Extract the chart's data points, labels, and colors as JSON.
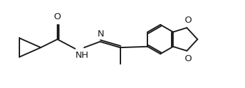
{
  "bg_color": "#ffffff",
  "line_color": "#1a1a1a",
  "line_width": 1.4,
  "font_size": 9.5,
  "figsize": [
    3.54,
    1.28
  ],
  "dpi": 100,
  "xlim": [
    0,
    10.2
  ],
  "ylim": [
    0.5,
    4.2
  ]
}
